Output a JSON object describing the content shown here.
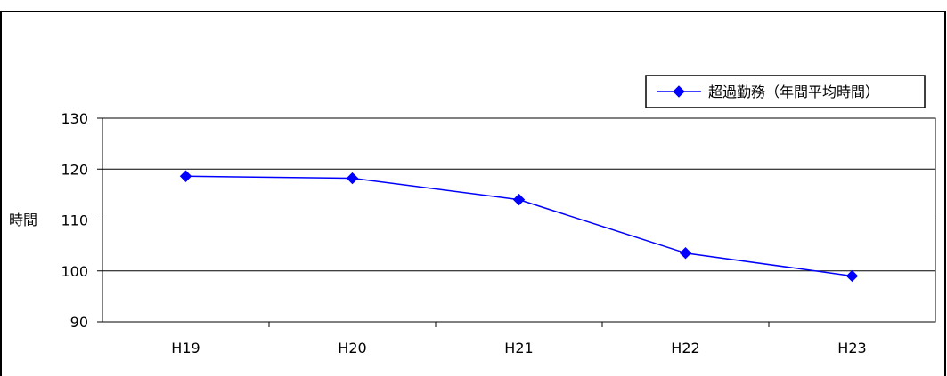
{
  "chart_data": {
    "type": "line",
    "categories": [
      "H19",
      "H20",
      "H21",
      "H22",
      "H23"
    ],
    "series": [
      {
        "name": "超過勤務（年間平均時間）",
        "values": [
          118.6,
          118.2,
          114.0,
          103.5,
          99.0
        ],
        "color": "#0000ff",
        "marker": "diamond"
      }
    ],
    "ylabel": "時間",
    "ylim": [
      90,
      130
    ],
    "yticks": [
      90,
      100,
      110,
      120,
      130
    ],
    "grid": true,
    "legend": "top-right"
  }
}
